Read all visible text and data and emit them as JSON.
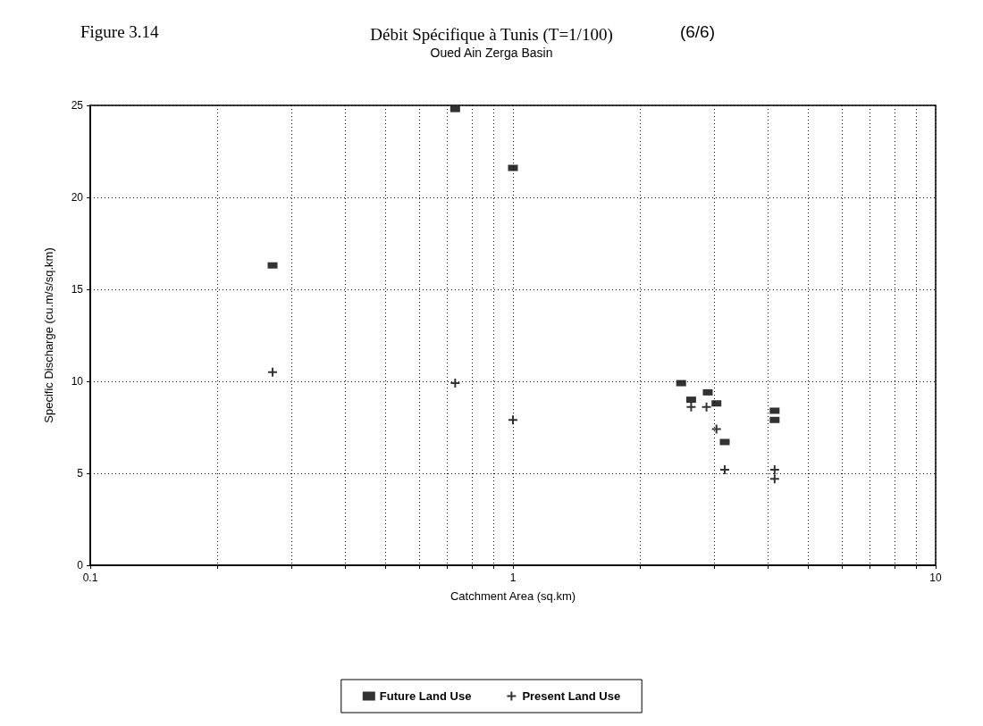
{
  "chart_data": {
    "type": "scatter",
    "title": "Débit Spécifique à Tunis (T=1/100)",
    "subtitle": "Oued Ain Zerga Basin",
    "annotations": [
      "Figure 3.14",
      "(6/6)"
    ],
    "xlabel": "Catchment Area (sq.km)",
    "ylabel": "Specific Discharge (cu.m/s/sq.km)",
    "log": "x",
    "grid": true,
    "legend": "bottom",
    "xlim": [
      0.1,
      10
    ],
    "xticks": [
      0.1,
      {
        "value": 0.2,
        "label": null
      },
      {
        "value": 0.3,
        "label": null
      },
      {
        "value": 0.4,
        "label": null
      },
      {
        "value": 0.5,
        "label": null
      },
      {
        "value": 0.6,
        "label": null
      },
      {
        "value": 0.7,
        "label": null
      },
      {
        "value": 0.8,
        "label": null
      },
      {
        "value": 0.9,
        "label": null
      },
      1,
      {
        "value": 2,
        "label": null
      },
      {
        "value": 3,
        "label": null
      },
      {
        "value": 4,
        "label": null
      },
      {
        "value": 5,
        "label": null
      },
      {
        "value": 6,
        "label": null
      },
      {
        "value": 7,
        "label": null
      },
      {
        "value": 8,
        "label": null
      },
      {
        "value": 9,
        "label": null
      },
      10
    ],
    "ylim": [
      0,
      25
    ],
    "yticks": [
      0,
      5,
      10,
      15,
      20,
      25
    ],
    "series": [
      {
        "name": "Future Land Use",
        "color": "#000000",
        "marker": "square",
        "x": [
          0.27,
          0.73,
          1.0,
          2.5,
          2.64,
          2.89,
          3.03,
          3.17,
          4.16,
          4.16
        ],
        "values": [
          16.3,
          24.8,
          21.6,
          9.9,
          9.0,
          9.4,
          8.8,
          6.7,
          8.4,
          7.9
        ]
      },
      {
        "name": "Present Land Use",
        "color": "#000000",
        "marker": "cross",
        "x": [
          0.27,
          0.73,
          1.0,
          2.64,
          2.87,
          3.03,
          3.17,
          4.16,
          4.16
        ],
        "values": [
          10.5,
          9.9,
          7.9,
          8.6,
          8.6,
          7.4,
          5.2,
          5.2,
          4.7
        ]
      }
    ]
  }
}
